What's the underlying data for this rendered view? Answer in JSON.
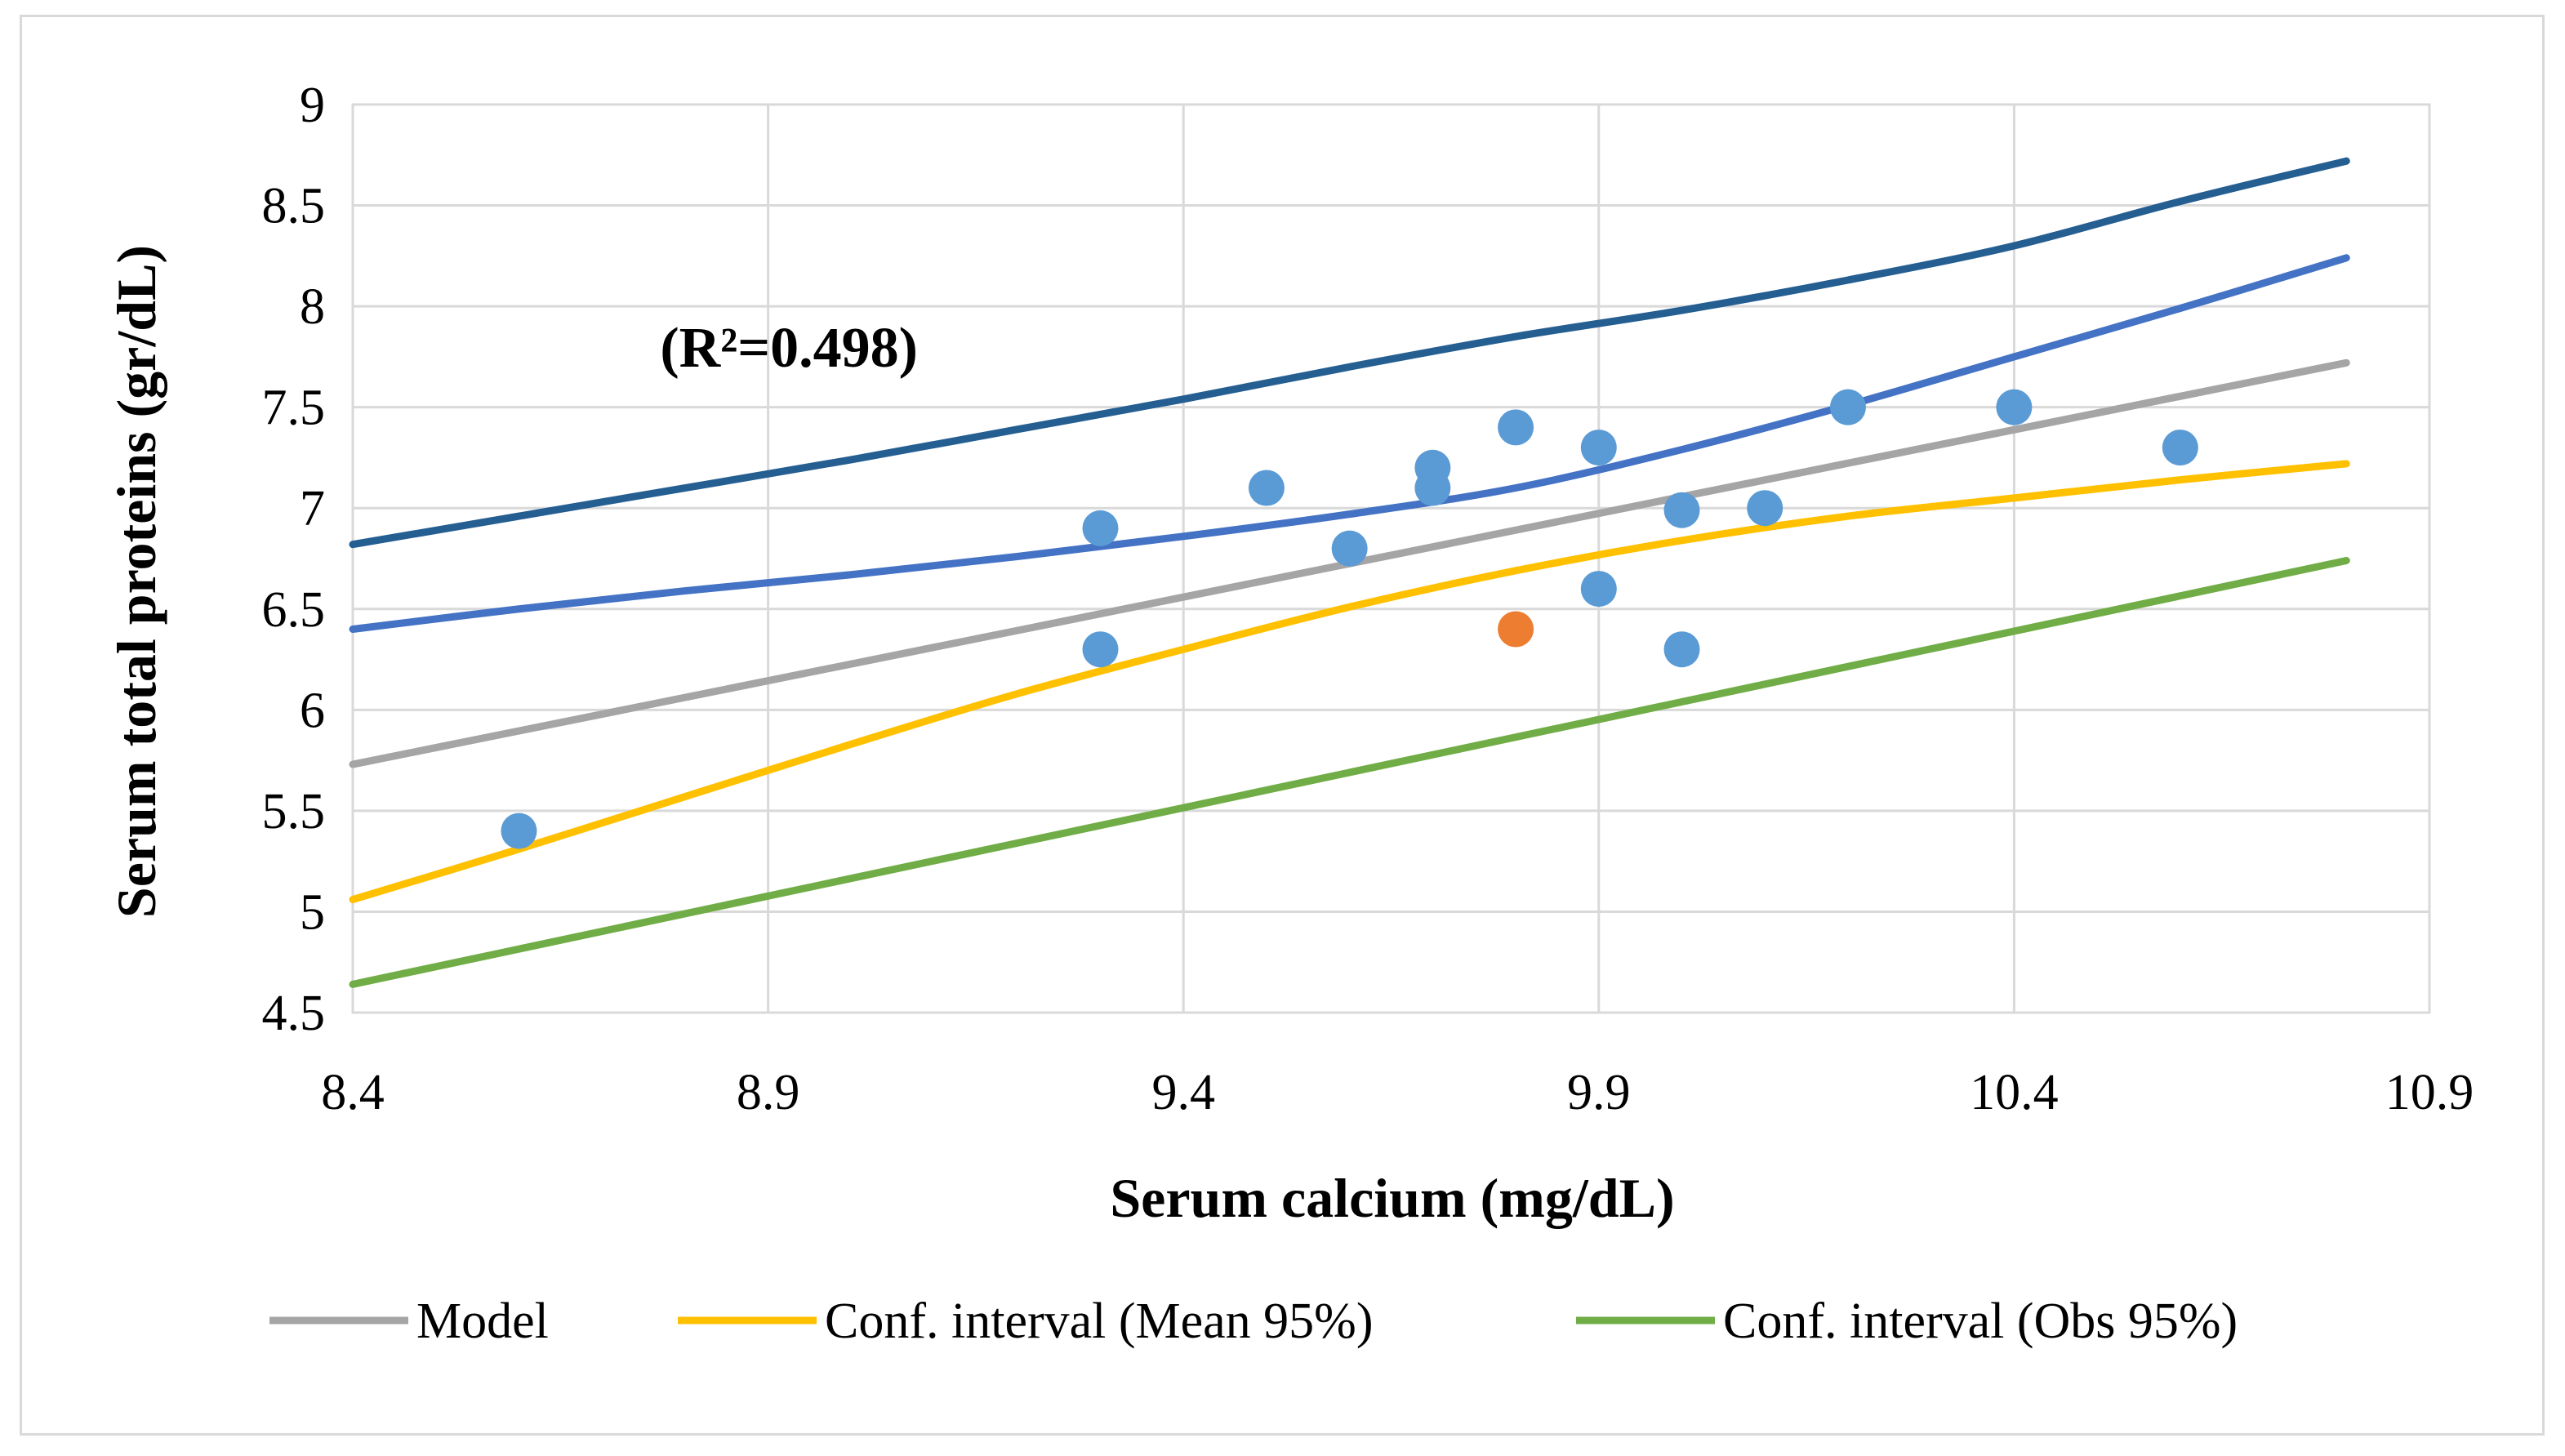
{
  "chart_data": {
    "type": "scatter",
    "title": "",
    "xlabel": "Serum calcium (mg/dL)",
    "ylabel": "Serum total proteins (gr/dL)",
    "xlim": [
      8.4,
      10.9
    ],
    "ylim": [
      4.5,
      9
    ],
    "xticks": [
      8.4,
      8.9,
      9.4,
      9.9,
      10.4,
      10.9
    ],
    "xtick_labels": [
      "8.4",
      "8.9",
      "9.4",
      "9.9",
      "10.4",
      "10.9"
    ],
    "yticks": [
      4.5,
      5,
      5.5,
      6,
      6.5,
      7,
      7.5,
      8,
      8.5,
      9
    ],
    "ytick_labels": [
      "4.5",
      "5",
      "5.5",
      "6",
      "6.5",
      "7",
      "7.5",
      "8",
      "8.5",
      "9"
    ],
    "grid": true,
    "annotation": "(R²=0.498)",
    "annotation_pos": {
      "x": 8.77,
      "y": 7.7
    },
    "points": [
      {
        "x": 8.6,
        "y": 5.4
      },
      {
        "x": 9.3,
        "y": 6.9
      },
      {
        "x": 9.3,
        "y": 6.3
      },
      {
        "x": 9.5,
        "y": 7.1
      },
      {
        "x": 9.6,
        "y": 6.8
      },
      {
        "x": 9.7,
        "y": 7.2
      },
      {
        "x": 9.7,
        "y": 7.1
      },
      {
        "x": 9.8,
        "y": 7.4
      },
      {
        "x": 9.9,
        "y": 7.3
      },
      {
        "x": 9.9,
        "y": 6.6
      },
      {
        "x": 10.0,
        "y": 6.99
      },
      {
        "x": 10.0,
        "y": 6.3
      },
      {
        "x": 10.1,
        "y": 7.0
      },
      {
        "x": 10.2,
        "y": 7.5
      },
      {
        "x": 10.4,
        "y": 7.5
      },
      {
        "x": 10.6,
        "y": 7.3
      }
    ],
    "highlight_points": [
      {
        "x": 9.8,
        "y": 6.4
      }
    ],
    "series": [
      {
        "name": "Model",
        "color": "#a5a5a5",
        "x": [
          8.4,
          10.8
        ],
        "y": [
          5.73,
          7.72
        ]
      },
      {
        "name": "Conf. interval (Mean 95%)",
        "color": "#ffc000",
        "x": [
          8.4,
          8.6,
          8.8,
          9.0,
          9.2,
          9.4,
          9.6,
          9.8,
          10.0,
          10.2,
          10.4,
          10.6,
          10.8
        ],
        "y": [
          5.06,
          5.31,
          5.57,
          5.83,
          6.08,
          6.3,
          6.51,
          6.69,
          6.84,
          6.96,
          7.05,
          7.14,
          7.22
        ]
      },
      {
        "name": "Conf. interval (Obs 95%)",
        "color": "#70ad47",
        "x": [
          8.4,
          10.8
        ],
        "y": [
          4.64,
          6.74
        ]
      },
      {
        "name": "Upper mean bound",
        "color": "#4472c4",
        "legend": false,
        "x": [
          8.4,
          8.6,
          8.8,
          9.0,
          9.2,
          9.4,
          9.6,
          9.8,
          10.0,
          10.2,
          10.4,
          10.6,
          10.8
        ],
        "y": [
          6.4,
          6.5,
          6.59,
          6.67,
          6.76,
          6.86,
          6.97,
          7.1,
          7.29,
          7.51,
          7.75,
          7.99,
          8.24
        ]
      },
      {
        "name": "Upper observation bound",
        "color": "#255e91",
        "legend": false,
        "x": [
          8.4,
          8.6,
          8.8,
          9.0,
          9.2,
          9.4,
          9.6,
          9.8,
          10.0,
          10.2,
          10.4,
          10.6,
          10.8
        ],
        "y": [
          6.82,
          6.96,
          7.1,
          7.24,
          7.39,
          7.54,
          7.7,
          7.85,
          7.98,
          8.13,
          8.3,
          8.52,
          8.72
        ]
      }
    ],
    "point_color": "#5b9bd5",
    "highlight_color": "#ed7d31",
    "legend_position": "bottom-center",
    "legend": [
      "Model",
      "Conf. interval (Mean 95%)",
      "Conf. interval (Obs 95%)"
    ]
  }
}
